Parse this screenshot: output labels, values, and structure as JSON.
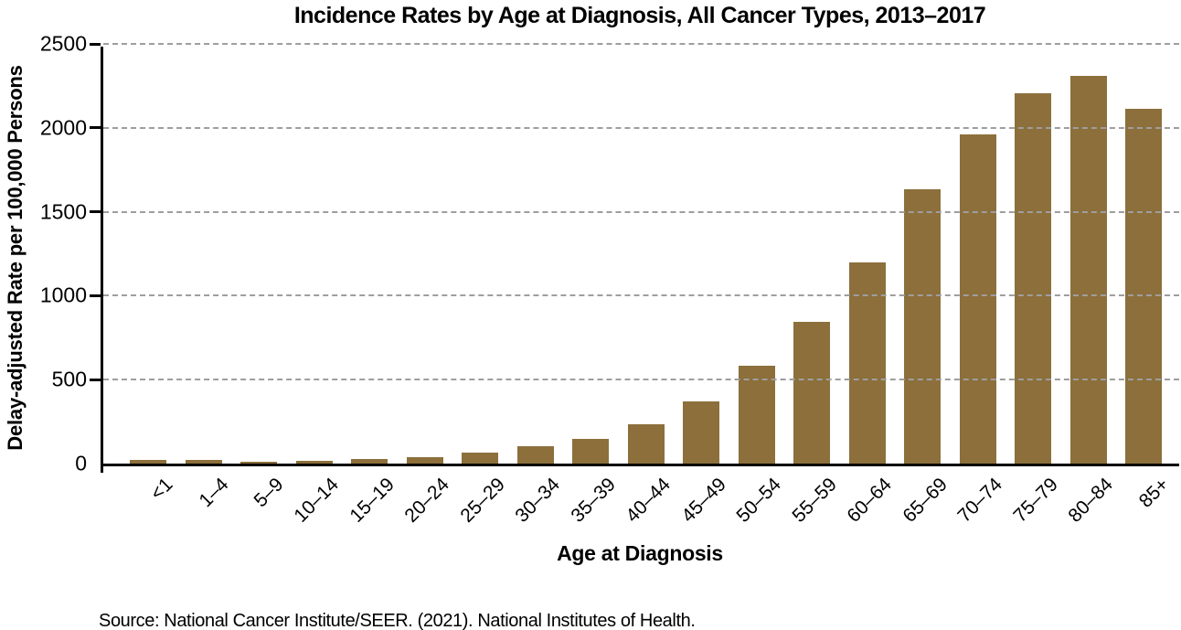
{
  "figure": {
    "title": "Incidence Rates by Age at Diagnosis, All Cancer Types, 2013–2017",
    "source": "Source: National Cancer Institute/SEER. (2021). National Institutes of Health."
  },
  "chart_data": {
    "type": "bar",
    "title": "Incidence Rates by Age at Diagnosis, All Cancer Types, 2013–2017",
    "xlabel": "Age at Diagnosis",
    "ylabel": "Delay-adjusted Rate per 100,000 Persons",
    "categories": [
      "<1",
      "1–4",
      "5–9",
      "10–14",
      "15–19",
      "20–24",
      "25–29",
      "30–34",
      "35–39",
      "40–44",
      "45–49",
      "50–54",
      "55–59",
      "60–64",
      "65–69",
      "70–74",
      "75–79",
      "80–84",
      "85+"
    ],
    "values": [
      24,
      23,
      13,
      15,
      25,
      40,
      67,
      103,
      149,
      236,
      371,
      583,
      846,
      1196,
      1635,
      1962,
      2206,
      2307,
      2112
    ],
    "ylim": [
      0,
      2500
    ],
    "y_ticks": [
      0,
      500,
      1000,
      1500,
      2000,
      2500
    ],
    "grid": "horizontal dashed gridlines at every y tick including top",
    "legend": "none",
    "bar_color": "#8C6F3B",
    "grid_color": "#9e9e9e",
    "axis_color": "#000000",
    "background_color": "#ffffff"
  }
}
